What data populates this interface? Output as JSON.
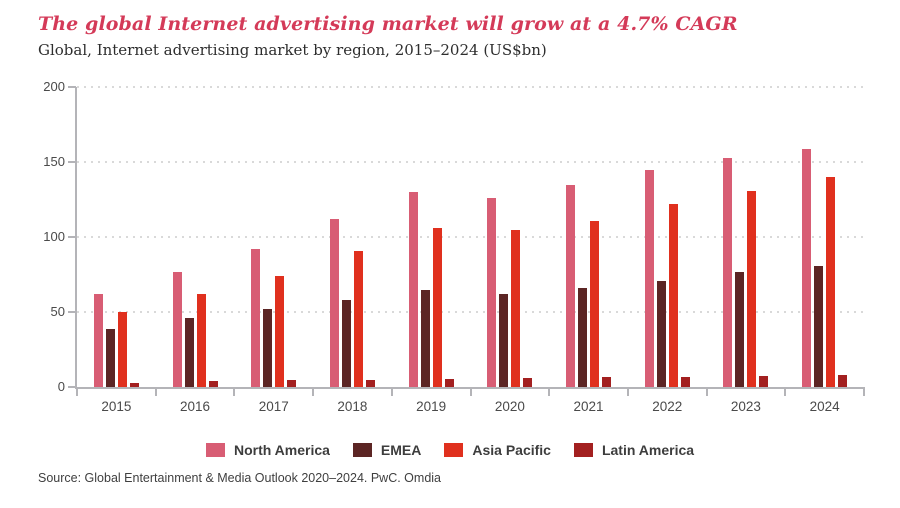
{
  "title": "The global Internet advertising market will grow at a 4.7% CAGR",
  "subtitle": "Global, Internet advertising market by region, 2015–2024 (US$bn)",
  "source": "Source: Global Entertainment & Media Outlook 2020–2024. PwC. Omdia",
  "colors": {
    "title": "#d43a58",
    "axis": "#b4b4b8",
    "tick_label": "#4a4a4a",
    "legend_text": "#3d3d3d"
  },
  "chart_data": {
    "type": "bar",
    "title": "The global Internet advertising market will grow at a 4.7% CAGR",
    "subtitle": "Global, Internet advertising market by region, 2015–2024 (US$bn)",
    "categories": [
      "2015",
      "2016",
      "2017",
      "2018",
      "2019",
      "2020",
      "2021",
      "2022",
      "2023",
      "2024"
    ],
    "series": [
      {
        "name": "North America",
        "color": "#d85d74",
        "values": [
          62,
          77,
          92,
          112,
          130,
          126,
          135,
          145,
          153,
          159
        ]
      },
      {
        "name": "EMEA",
        "color": "#5c2524",
        "values": [
          39,
          46,
          52,
          58,
          65,
          62,
          66,
          71,
          77,
          81
        ]
      },
      {
        "name": "Asia Pacific",
        "color": "#e0301e",
        "values": [
          50,
          62,
          74,
          91,
          106,
          105,
          111,
          122,
          131,
          140
        ]
      },
      {
        "name": "Latin America",
        "color": "#a32020",
        "values": [
          3,
          4,
          4.5,
          5,
          5.5,
          6,
          6.5,
          7,
          7.5,
          8
        ]
      }
    ],
    "xlabel": "",
    "ylabel": "",
    "ylim": [
      0,
      200
    ],
    "yticks": [
      0,
      50,
      100,
      150,
      200
    ],
    "grid": "horizontal-dotted",
    "legend_position": "bottom"
  }
}
